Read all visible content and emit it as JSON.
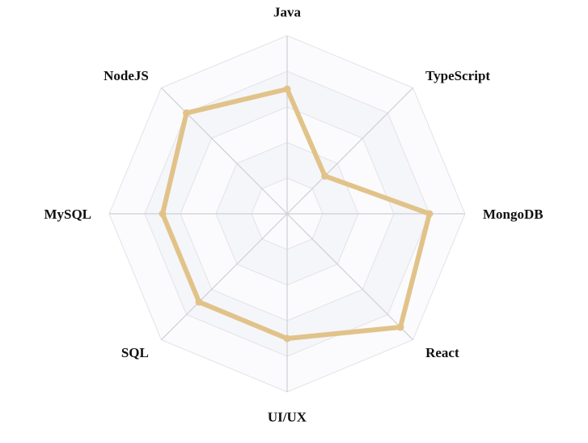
{
  "chart_data": {
    "type": "radar",
    "title": "",
    "axes": [
      "Java",
      "TypeScript",
      "MongoDB",
      "React",
      "UI/UX",
      "SQL",
      "MySQL",
      "NodeJS"
    ],
    "range": [
      0,
      100
    ],
    "rings": 5,
    "grid": true,
    "series": [
      {
        "values": [
          70,
          30,
          80,
          90,
          70,
          70,
          70,
          80
        ],
        "color": "#e1c38a"
      }
    ]
  },
  "colors": {
    "band_fill": "#f5f6fa",
    "grid_line": "#e3e3e8",
    "spoke_line": "#cfcfd4",
    "label_text": "#111111"
  }
}
